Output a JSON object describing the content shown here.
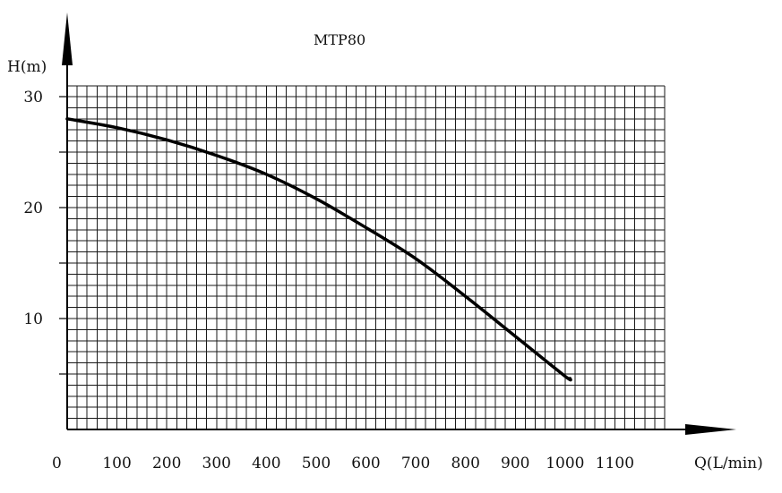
{
  "chart_data": {
    "type": "line",
    "title": "MTP80",
    "xlabel": "Q(L/min)",
    "ylabel": "H(m)",
    "xlim": [
      0,
      1200
    ],
    "ylim": [
      0,
      30
    ],
    "x_ticks": [
      "0",
      "100",
      "200",
      "300",
      "400",
      "500",
      "600",
      "700",
      "800",
      "900",
      "1000",
      "1100"
    ],
    "y_ticks": [
      "10",
      "20",
      "30"
    ],
    "grid": true,
    "series": [
      {
        "x": [
          0,
          100,
          200,
          300,
          400,
          500,
          600,
          700,
          800,
          900,
          1000,
          1010
        ],
        "y": [
          28.0,
          27.2,
          26.1,
          24.7,
          23.0,
          20.8,
          18.2,
          15.4,
          12.0,
          8.4,
          4.8,
          4.6
        ]
      }
    ]
  }
}
